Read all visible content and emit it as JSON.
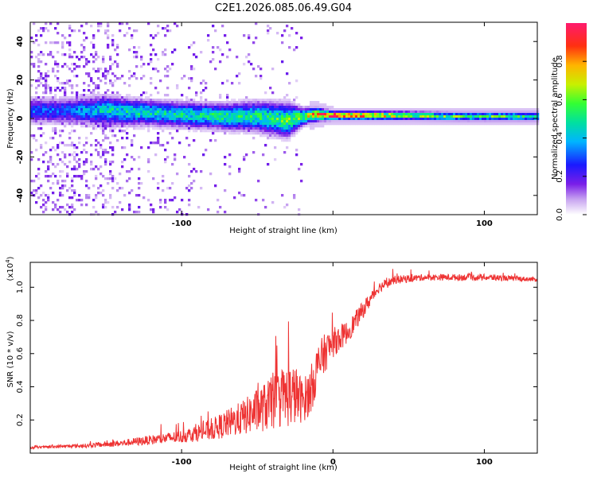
{
  "title": "C2E1.2026.085.06.49.G04",
  "chart_data": [
    {
      "type": "heatmap",
      "name": "spectrogram",
      "xlabel": "Height of straight line (km)",
      "ylabel": "Frequency (Hz)",
      "xlim": [
        -200,
        135
      ],
      "ylim": [
        -50,
        50
      ],
      "x_ticks": [
        -100,
        0,
        100
      ],
      "x_tick_labels": [
        "-100",
        "",
        "100"
      ],
      "y_ticks": [
        -40,
        -20,
        0,
        20,
        40
      ],
      "y_tick_labels": [
        "-40",
        "-20",
        "0",
        "20",
        "40"
      ],
      "colorbar": {
        "label": "Normalized spectral amplitude",
        "range": [
          0,
          1
        ],
        "ticks": [
          0.0,
          0.2,
          0.4,
          0.6,
          0.8
        ],
        "tick_labels": [
          "0.0",
          "0.2",
          "0.4",
          "0.6",
          "0.8"
        ]
      },
      "ridge": {
        "x": [
          -175,
          -150,
          -125,
          -100,
          -75,
          -50,
          -30,
          -20,
          -10,
          0,
          20,
          50,
          80,
          110,
          135
        ],
        "center_hz": [
          4,
          4,
          3,
          2,
          1,
          1,
          -1,
          1,
          2,
          1.5,
          1.5,
          1.5,
          1,
          1,
          1
        ],
        "width_hz": [
          6,
          7,
          6,
          6,
          6,
          7,
          8,
          4,
          3,
          2,
          2,
          2,
          2,
          2,
          2
        ],
        "peak_amplitude": [
          0.3,
          0.45,
          0.45,
          0.45,
          0.5,
          0.5,
          0.55,
          0.6,
          0.85,
          0.95,
          0.85,
          0.6,
          0.55,
          0.55,
          0.5
        ]
      }
    },
    {
      "type": "line",
      "name": "snr",
      "xlabel": "Height of straight line (km)",
      "ylabel": "SNR (10 * v/v)",
      "y_multiplier": "(x10",
      "y_multiplier_exp": "4",
      "y_multiplier_close": ")",
      "xlim": [
        -200,
        135
      ],
      "ylim": [
        0,
        1.15
      ],
      "x_ticks": [
        -100,
        0,
        100
      ],
      "x_tick_labels": [
        "-100",
        "0",
        "100"
      ],
      "y_ticks": [
        0.2,
        0.4,
        0.6,
        0.8,
        1.0
      ],
      "y_tick_labels": [
        "0.2",
        "0.4",
        "0.6",
        "0.8",
        "1.0"
      ],
      "color": "#ee3333",
      "envelope": {
        "x": [
          -200,
          -160,
          -140,
          -100,
          -80,
          -60,
          -40,
          -30,
          -25,
          -20,
          -15,
          -10,
          -5,
          0,
          10,
          20,
          30,
          40,
          60,
          100,
          135
        ],
        "base": [
          0.03,
          0.04,
          0.05,
          0.08,
          0.11,
          0.16,
          0.22,
          0.25,
          0.26,
          0.25,
          0.3,
          0.45,
          0.55,
          0.62,
          0.7,
          0.84,
          0.98,
          1.03,
          1.05,
          1.05,
          1.04
        ],
        "noise": [
          0.01,
          0.02,
          0.03,
          0.06,
          0.1,
          0.16,
          0.25,
          0.3,
          0.28,
          0.2,
          0.22,
          0.22,
          0.18,
          0.14,
          0.1,
          0.08,
          0.05,
          0.04,
          0.03,
          0.03,
          0.02
        ]
      }
    }
  ]
}
